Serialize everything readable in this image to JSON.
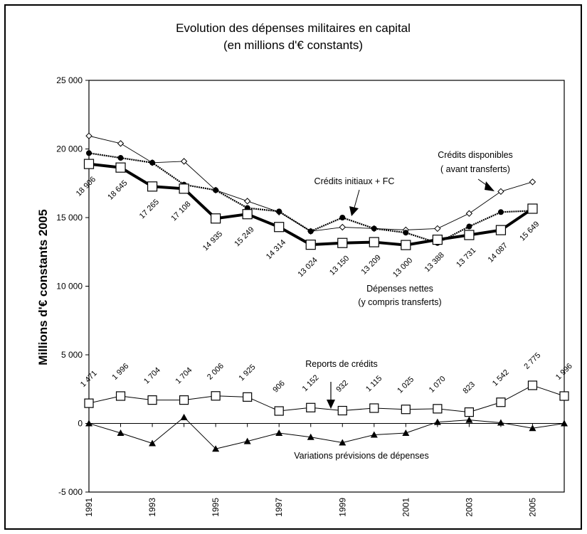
{
  "chart_data": {
    "type": "line",
    "title": "Evolution des dépenses militaires en capital",
    "subtitle": "(en millions d'€ constants)",
    "xlabel": "",
    "ylabel": "Millions d'€ constants 2005",
    "ylim": [
      -5000,
      25000
    ],
    "yticks": [
      -5000,
      0,
      5000,
      10000,
      15000,
      20000,
      25000
    ],
    "ytick_labels": [
      "-5 000",
      "0",
      "5 000",
      "10 000",
      "15 000",
      "20 000",
      "25 000"
    ],
    "x": [
      1991,
      1992,
      1993,
      1994,
      1995,
      1996,
      1997,
      1998,
      1999,
      2000,
      2001,
      2002,
      2003,
      2004,
      2005,
      2006
    ],
    "xtick_labels": [
      "1991",
      "1993",
      "1995",
      "1997",
      "1999",
      "2001",
      "2003",
      "2005"
    ],
    "grid": false,
    "series": [
      {
        "name": "Crédits disponibles (avant transferts)",
        "marker": "diamond-open",
        "values": [
          20950,
          20400,
          19000,
          19100,
          17000,
          16200,
          15400,
          14000,
          14300,
          14200,
          14100,
          14200,
          15300,
          16900,
          17600
        ]
      },
      {
        "name": "Crédits initiaux + FC",
        "marker": "circle-filled",
        "values": [
          19700,
          19350,
          19000,
          17400,
          17000,
          15700,
          15450,
          14000,
          15000,
          14200,
          13900,
          13150,
          14350,
          15400,
          15500
        ]
      },
      {
        "name": "Dépenses nettes (y compris transferts)",
        "marker": "square-open",
        "values": [
          18906,
          18645,
          17265,
          17108,
          14935,
          15249,
          14314,
          13024,
          13150,
          13209,
          13000,
          13388,
          13731,
          14087,
          15649
        ],
        "labels": [
          "18 906",
          "18 645",
          "17 265",
          "17 108",
          "14 935",
          "15 249",
          "14 314",
          "13 024",
          "13 150",
          "13 209",
          "13 000",
          "13 388",
          "13 731",
          "14 087",
          "15 649"
        ]
      },
      {
        "name": "Reports de crédits",
        "marker": "square-open",
        "values": [
          1471,
          1996,
          1704,
          1704,
          2006,
          1925,
          906,
          1152,
          932,
          1115,
          1025,
          1070,
          823,
          1542,
          2775,
          1996
        ],
        "labels": [
          "1 471",
          "1 996",
          "1 704",
          "1 704",
          "2 006",
          "1 925",
          "906",
          "1 152",
          "932",
          "1 115",
          "1 025",
          "1 070",
          "823",
          "1 542",
          "2 775",
          "1 996"
        ]
      },
      {
        "name": "Variations prévisions de dépenses",
        "marker": "triangle-filled",
        "values": [
          0,
          -700,
          -1450,
          450,
          -1850,
          -1300,
          -700,
          -1000,
          -1400,
          -830,
          -700,
          100,
          250,
          50,
          -350,
          0
        ]
      }
    ],
    "annotations": [
      {
        "line1": "Crédits disponibles",
        "line2": "( avant transferts)"
      },
      {
        "line1": "Crédits initiaux + FC"
      },
      {
        "line1": "Dépenses nettes",
        "line2": "(y compris transferts)"
      },
      {
        "line1": "Reports de crédits"
      },
      {
        "line1": "Variations prévisions de dépenses"
      }
    ]
  }
}
